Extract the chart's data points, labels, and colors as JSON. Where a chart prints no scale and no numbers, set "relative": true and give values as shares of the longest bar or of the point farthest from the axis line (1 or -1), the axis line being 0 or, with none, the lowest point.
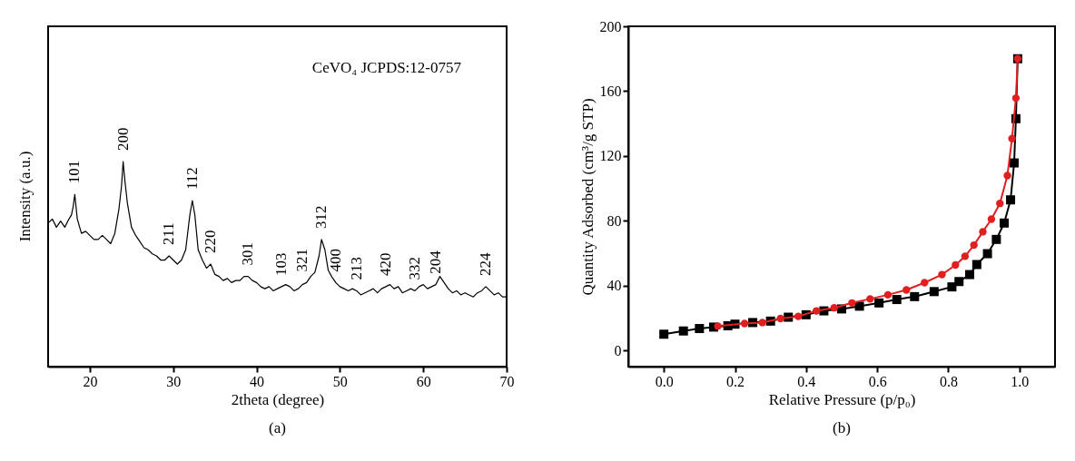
{
  "chart_data": [
    {
      "type": "line",
      "title": "(a)",
      "xlabel": "2theta (degree)",
      "ylabel": "Intensity (a.u.)",
      "relative": true,
      "xlim": [
        15,
        70
      ],
      "xticks": [
        20,
        30,
        40,
        50,
        60,
        70
      ],
      "x": [
        15,
        15.5,
        16,
        16.5,
        17,
        17.5,
        17.8,
        18,
        18.2,
        18.5,
        19,
        19.5,
        20,
        20.5,
        21,
        21.5,
        22,
        22.5,
        23,
        23.5,
        23.8,
        24,
        24.2,
        24.5,
        25,
        25.5,
        26,
        26.5,
        27,
        27.5,
        28,
        28.5,
        29,
        29.5,
        30,
        30.5,
        31,
        31.5,
        32,
        32.3,
        32.6,
        33,
        33.5,
        34,
        34.5,
        35,
        35.5,
        36,
        36.5,
        37,
        37.5,
        38,
        38.5,
        39,
        39.5,
        40,
        40.5,
        41,
        41.5,
        42,
        42.5,
        43,
        43.5,
        44,
        44.5,
        45,
        45.5,
        46,
        46.5,
        47,
        47.5,
        47.8,
        48.2,
        48.6,
        49,
        49.5,
        50,
        50.5,
        51,
        51.5,
        52,
        52.5,
        53,
        53.5,
        54,
        54.5,
        55,
        55.5,
        56,
        56.5,
        57,
        57.5,
        58,
        58.5,
        59,
        59.5,
        60,
        60.5,
        61,
        61.5,
        62,
        62.5,
        63,
        63.5,
        64,
        64.5,
        65,
        65.5,
        66,
        66.5,
        67,
        67.5,
        68,
        68.5,
        69,
        69.5,
        70
      ],
      "values": [
        0.7,
        0.72,
        0.68,
        0.71,
        0.68,
        0.72,
        0.74,
        0.78,
        0.84,
        0.72,
        0.65,
        0.66,
        0.64,
        0.62,
        0.62,
        0.64,
        0.62,
        0.6,
        0.65,
        0.77,
        0.88,
        1.0,
        0.91,
        0.8,
        0.68,
        0.64,
        0.61,
        0.58,
        0.57,
        0.55,
        0.54,
        0.52,
        0.52,
        0.54,
        0.52,
        0.5,
        0.52,
        0.57,
        0.74,
        0.81,
        0.74,
        0.57,
        0.52,
        0.48,
        0.5,
        0.45,
        0.44,
        0.42,
        0.43,
        0.41,
        0.42,
        0.42,
        0.44,
        0.44,
        0.42,
        0.41,
        0.39,
        0.38,
        0.39,
        0.37,
        0.38,
        0.39,
        0.4,
        0.39,
        0.37,
        0.38,
        0.4,
        0.41,
        0.44,
        0.46,
        0.54,
        0.62,
        0.57,
        0.47,
        0.44,
        0.41,
        0.39,
        0.38,
        0.37,
        0.38,
        0.37,
        0.35,
        0.36,
        0.37,
        0.38,
        0.36,
        0.38,
        0.39,
        0.4,
        0.38,
        0.39,
        0.36,
        0.37,
        0.38,
        0.37,
        0.39,
        0.4,
        0.38,
        0.39,
        0.4,
        0.44,
        0.41,
        0.38,
        0.36,
        0.37,
        0.35,
        0.36,
        0.35,
        0.34,
        0.36,
        0.37,
        0.39,
        0.37,
        0.35,
        0.36,
        0.34,
        0.34
      ],
      "color": "#000000",
      "annotations": [
        "CeVO₄ JCPDS:12-0757",
        {
          "text": "101",
          "x": 18.2,
          "y": 0.84
        },
        {
          "text": "200",
          "x": 24,
          "y": 1.0
        },
        {
          "text": "211",
          "x": 29.5,
          "y": 0.54
        },
        {
          "text": "112",
          "x": 32.3,
          "y": 0.81
        },
        {
          "text": "220",
          "x": 34.5,
          "y": 0.5
        },
        {
          "text": "301",
          "x": 39,
          "y": 0.44
        },
        {
          "text": "103",
          "x": 43,
          "y": 0.39
        },
        {
          "text": "321",
          "x": 45.5,
          "y": 0.41
        },
        {
          "text": "312",
          "x": 47.8,
          "y": 0.62
        },
        {
          "text": "400",
          "x": 49.5,
          "y": 0.41
        },
        {
          "text": "213",
          "x": 52,
          "y": 0.37
        },
        {
          "text": "420",
          "x": 55.5,
          "y": 0.39
        },
        {
          "text": "332",
          "x": 59,
          "y": 0.37
        },
        {
          "text": "204",
          "x": 61.5,
          "y": 0.4
        },
        {
          "text": "224",
          "x": 67.5,
          "y": 0.39
        }
      ]
    },
    {
      "type": "line",
      "title": "(b)",
      "xlabel": "Relative Pressure (p/p₀)",
      "ylabel": "Quantity Adsorbed (cm³/g STP)",
      "xlim": [
        -0.1,
        1.1
      ],
      "ylim": [
        -10,
        200
      ],
      "xticks": [
        {
          "value": 0,
          "label": "0.0"
        },
        0.2,
        0.4,
        0.6,
        0.8,
        {
          "value": 1,
          "label": "1.0"
        }
      ],
      "yticks": [
        0,
        40,
        80,
        120,
        160,
        200
      ],
      "series": [
        {
          "color": "#000000",
          "marker": "square",
          "x": [
            0,
            0.055,
            0.1,
            0.14,
            0.18,
            0.2,
            0.25,
            0.3,
            0.35,
            0.4,
            0.45,
            0.5,
            0.55,
            0.605,
            0.655,
            0.705,
            0.76,
            0.81,
            0.83,
            0.86,
            0.88,
            0.91,
            0.935,
            0.957,
            0.975,
            0.985,
            0.99,
            0.995
          ],
          "values": [
            10,
            12,
            13.5,
            14.4,
            15.2,
            16.2,
            17.2,
            18.1,
            20.5,
            22,
            24.4,
            25.6,
            27.3,
            29.3,
            31.4,
            33.2,
            36.3,
            39.2,
            42.5,
            46.8,
            53,
            59.7,
            68.5,
            78.6,
            92.9,
            115.7,
            143,
            180
          ]
        },
        {
          "color": "#e02020",
          "marker": "circle",
          "x": [
            0.152,
            0.227,
            0.277,
            0.328,
            0.378,
            0.429,
            0.479,
            0.529,
            0.58,
            0.63,
            0.682,
            0.733,
            0.782,
            0.82,
            0.847,
            0.872,
            0.897,
            0.921,
            0.945,
            0.966,
            0.979,
            0.99,
            0.995
          ],
          "values": [
            15,
            16.6,
            17.2,
            19.7,
            21,
            24.4,
            26.3,
            29.3,
            31.8,
            34.3,
            37.3,
            41.8,
            46.8,
            52.7,
            58.1,
            65,
            73.2,
            81,
            90.7,
            107.9,
            130.7,
            155.7,
            180
          ]
        }
      ]
    }
  ]
}
